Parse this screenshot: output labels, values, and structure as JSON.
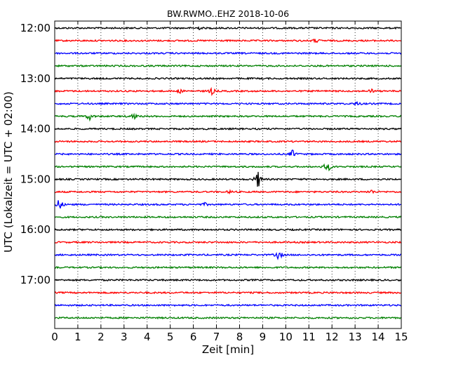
{
  "chart_data": {
    "type": "line",
    "title": "BW.RWMO..EHZ 2018-10-06",
    "xlabel": "Zeit  [min]",
    "ylabel": "UTC (Lokalzeit = UTC + 02:00)",
    "xlim": [
      0,
      15
    ],
    "x_ticks": [
      "0",
      "1",
      "2",
      "3",
      "4",
      "5",
      "6",
      "7",
      "8",
      "9",
      "10",
      "11",
      "12",
      "13",
      "14",
      "15"
    ],
    "y_tick_labels": [
      "12:00",
      "13:00",
      "14:00",
      "15:00",
      "16:00",
      "17:00"
    ],
    "grid": "vertical dotted",
    "color_cycle": [
      "#000000",
      "#ff0000",
      "#0000ff",
      "#008000"
    ],
    "traces": [
      {
        "start": "12:00",
        "events": [
          {
            "t": 6.2,
            "amp": 3
          }
        ]
      },
      {
        "start": "12:15",
        "events": [
          {
            "t": 11.3,
            "amp": 3
          }
        ]
      },
      {
        "start": "12:30",
        "events": []
      },
      {
        "start": "12:45",
        "events": []
      },
      {
        "start": "13:00",
        "events": []
      },
      {
        "start": "13:15",
        "events": [
          {
            "t": 5.4,
            "amp": 3
          },
          {
            "t": 6.8,
            "amp": 5
          },
          {
            "t": 13.7,
            "amp": 3
          }
        ]
      },
      {
        "start": "13:30",
        "events": [
          {
            "t": 13.1,
            "amp": 3
          }
        ]
      },
      {
        "start": "13:45",
        "events": [
          {
            "t": 1.5,
            "amp": 6
          },
          {
            "t": 3.4,
            "amp": 6
          }
        ]
      },
      {
        "start": "14:00",
        "events": []
      },
      {
        "start": "14:15",
        "events": []
      },
      {
        "start": "14:30",
        "events": [
          {
            "t": 10.3,
            "amp": 6
          }
        ]
      },
      {
        "start": "14:45",
        "events": [
          {
            "t": 11.8,
            "amp": 10
          }
        ]
      },
      {
        "start": "15:00",
        "events": [
          {
            "t": 8.8,
            "amp": 14
          }
        ]
      },
      {
        "start": "15:15",
        "events": [
          {
            "t": 7.6,
            "amp": 2
          },
          {
            "t": 13.7,
            "amp": 3
          }
        ]
      },
      {
        "start": "15:30",
        "events": [
          {
            "t": 0.2,
            "amp": 10
          },
          {
            "t": 6.5,
            "amp": 2
          }
        ]
      },
      {
        "start": "15:45",
        "events": []
      },
      {
        "start": "16:00",
        "events": []
      },
      {
        "start": "16:15",
        "events": []
      },
      {
        "start": "16:30",
        "events": [
          {
            "t": 9.7,
            "amp": 8
          }
        ]
      },
      {
        "start": "16:45",
        "events": []
      },
      {
        "start": "17:00",
        "events": []
      },
      {
        "start": "17:15",
        "events": []
      },
      {
        "start": "17:30",
        "events": []
      },
      {
        "start": "17:45",
        "events": []
      }
    ]
  }
}
